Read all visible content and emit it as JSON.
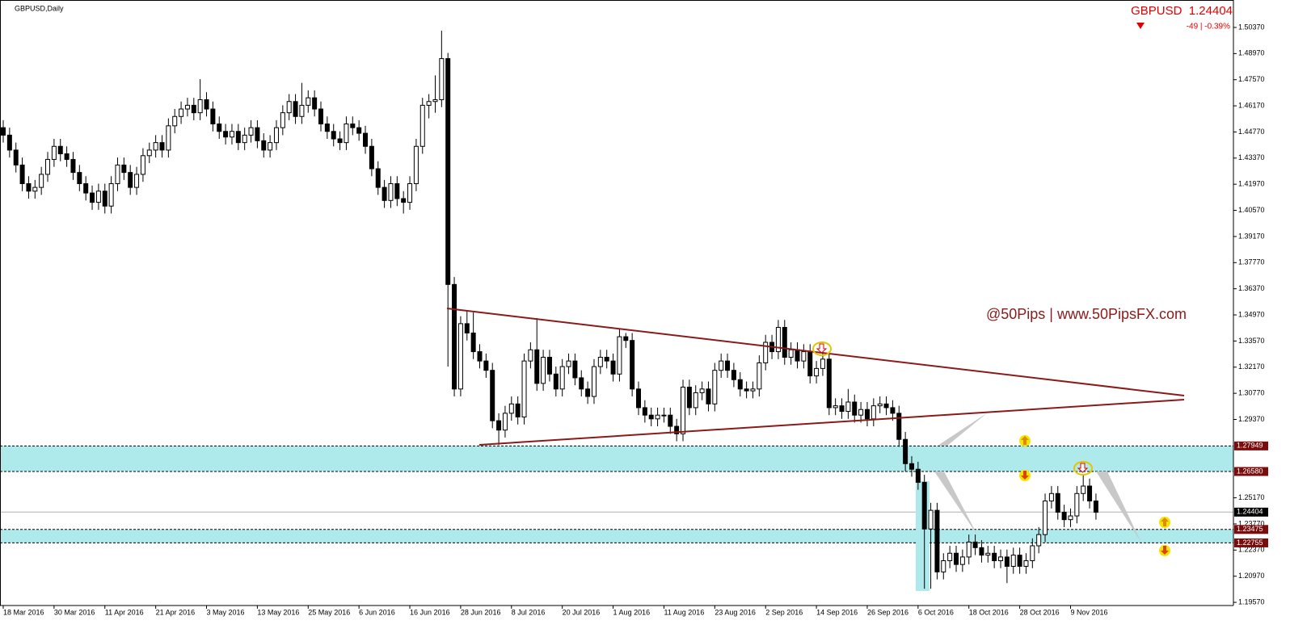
{
  "chart_data": {
    "type": "candlestick",
    "title": "GBPUSD,Daily",
    "quote": "GBPUSD  1.24404",
    "change": "-49 | -0.39%",
    "annotation": "@50Pips | www.50PipsFX.com",
    "ylim": [
      1.194,
      1.5184
    ],
    "yticks": [
      {
        "value": 1.5037,
        "label": "1.50370"
      },
      {
        "value": 1.4897,
        "label": "1.48970"
      },
      {
        "value": 1.4757,
        "label": "1.47570"
      },
      {
        "value": 1.4617,
        "label": "1.46170"
      },
      {
        "value": 1.4477,
        "label": "1.44770"
      },
      {
        "value": 1.4337,
        "label": "1.43370"
      },
      {
        "value": 1.4197,
        "label": "1.41970"
      },
      {
        "value": 1.4057,
        "label": "1.40570"
      },
      {
        "value": 1.3917,
        "label": "1.39170"
      },
      {
        "value": 1.3777,
        "label": "1.37770"
      },
      {
        "value": 1.3637,
        "label": "1.36370"
      },
      {
        "value": 1.3497,
        "label": "1.34970"
      },
      {
        "value": 1.3357,
        "label": "1.33570"
      },
      {
        "value": 1.3217,
        "label": "1.32170"
      },
      {
        "value": 1.3077,
        "label": "1.30770"
      },
      {
        "value": 1.2937,
        "label": "1.29370"
      },
      {
        "value": 1.2517,
        "label": "1.25170"
      },
      {
        "value": 1.2377,
        "label": "1.23770"
      },
      {
        "value": 1.2237,
        "label": "1.22370"
      },
      {
        "value": 1.2097,
        "label": "1.20970"
      },
      {
        "value": 1.1957,
        "label": "1.19570"
      }
    ],
    "levels": [
      1.27949,
      {
        "value": 1.2658,
        "label": "1.26580"
      },
      1.24404,
      1.23475,
      1.22755
    ],
    "categories": [
      "18 Mar 2016",
      null,
      null,
      null,
      null,
      null,
      null,
      null,
      "30 Mar 2016",
      null,
      null,
      null,
      null,
      null,
      null,
      null,
      "11 Apr 2016",
      null,
      null,
      null,
      null,
      null,
      null,
      null,
      "21 Apr 2016",
      null,
      null,
      null,
      null,
      null,
      null,
      null,
      "3 May 2016",
      null,
      null,
      null,
      null,
      null,
      null,
      null,
      "13 May 2016",
      null,
      null,
      null,
      null,
      null,
      null,
      null,
      "25 May 2016",
      null,
      null,
      null,
      null,
      null,
      null,
      null,
      "6 Jun 2016",
      null,
      null,
      null,
      null,
      null,
      null,
      null,
      "16 Jun 2016",
      null,
      null,
      null,
      null,
      null,
      null,
      null,
      "28 Jun 2016",
      null,
      null,
      null,
      null,
      null,
      null,
      null,
      "8 Jul 2016",
      null,
      null,
      null,
      null,
      null,
      null,
      null,
      "20 Jul 2016",
      null,
      null,
      null,
      null,
      null,
      null,
      null,
      "1 Aug 2016",
      null,
      null,
      null,
      null,
      null,
      null,
      null,
      "11 Aug 2016",
      null,
      null,
      null,
      null,
      null,
      null,
      null,
      "23 Aug 2016",
      null,
      null,
      null,
      null,
      null,
      null,
      null,
      "2 Sep 2016",
      null,
      null,
      null,
      null,
      null,
      null,
      null,
      "14 Sep 2016",
      null,
      null,
      null,
      null,
      null,
      null,
      null,
      "26 Sep 2016",
      null,
      null,
      null,
      null,
      null,
      null,
      null,
      "6 Oct 2016",
      null,
      null,
      null,
      null,
      null,
      null,
      null,
      "18 Oct 2016",
      null,
      null,
      null,
      null,
      null,
      null,
      null,
      "28 Oct 2016",
      null,
      null,
      null,
      null,
      null,
      null,
      null,
      "9 Nov 2016",
      null,
      null,
      null,
      null
    ],
    "candles": [
      [
        1.45,
        1.454,
        1.442,
        1.446
      ],
      [
        1.446,
        1.45,
        1.434,
        1.438
      ],
      [
        1.438,
        1.442,
        1.426,
        1.43
      ],
      [
        1.43,
        1.434,
        1.416,
        1.42
      ],
      [
        1.42,
        1.424,
        1.412,
        1.416
      ],
      [
        1.416,
        1.422,
        1.412,
        1.418
      ],
      [
        1.418,
        1.429,
        1.414,
        1.425
      ],
      [
        1.425,
        1.437,
        1.421,
        1.433
      ],
      [
        1.433,
        1.444,
        1.429,
        1.44
      ],
      [
        1.44,
        1.444,
        1.432,
        1.436
      ],
      [
        1.436,
        1.44,
        1.429,
        1.433
      ],
      [
        1.433,
        1.437,
        1.422,
        1.426
      ],
      [
        1.426,
        1.43,
        1.416,
        1.42
      ],
      [
        1.42,
        1.424,
        1.411,
        1.415
      ],
      [
        1.415,
        1.419,
        1.406,
        1.41
      ],
      [
        1.41,
        1.42,
        1.406,
        1.416
      ],
      [
        1.416,
        1.42,
        1.404,
        1.408
      ],
      [
        1.408,
        1.424,
        1.404,
        1.42
      ],
      [
        1.42,
        1.434,
        1.416,
        1.43
      ],
      [
        1.43,
        1.434,
        1.422,
        1.426
      ],
      [
        1.426,
        1.43,
        1.414,
        1.418
      ],
      [
        1.418,
        1.429,
        1.414,
        1.425
      ],
      [
        1.425,
        1.439,
        1.421,
        1.435
      ],
      [
        1.435,
        1.442,
        1.431,
        1.438
      ],
      [
        1.438,
        1.446,
        1.434,
        1.442
      ],
      [
        1.442,
        1.446,
        1.434,
        1.438
      ],
      [
        1.438,
        1.455,
        1.434,
        1.451
      ],
      [
        1.451,
        1.46,
        1.447,
        1.456
      ],
      [
        1.456,
        1.464,
        1.452,
        1.46
      ],
      [
        1.46,
        1.466,
        1.456,
        1.462
      ],
      [
        1.462,
        1.466,
        1.454,
        1.458
      ],
      [
        1.458,
        1.476,
        1.454,
        1.465
      ],
      [
        1.465,
        1.469,
        1.456,
        1.46
      ],
      [
        1.46,
        1.464,
        1.448,
        1.452
      ],
      [
        1.452,
        1.456,
        1.444,
        1.448
      ],
      [
        1.448,
        1.452,
        1.441,
        1.445
      ],
      [
        1.445,
        1.452,
        1.441,
        1.448
      ],
      [
        1.448,
        1.452,
        1.438,
        1.442
      ],
      [
        1.442,
        1.45,
        1.438,
        1.446
      ],
      [
        1.446,
        1.454,
        1.442,
        1.45
      ],
      [
        1.45,
        1.454,
        1.439,
        1.443
      ],
      [
        1.443,
        1.447,
        1.434,
        1.438
      ],
      [
        1.438,
        1.446,
        1.434,
        1.442
      ],
      [
        1.442,
        1.454,
        1.438,
        1.45
      ],
      [
        1.45,
        1.462,
        1.446,
        1.458
      ],
      [
        1.458,
        1.468,
        1.454,
        1.464
      ],
      [
        1.464,
        1.468,
        1.452,
        1.456
      ],
      [
        1.456,
        1.474,
        1.452,
        1.462
      ],
      [
        1.462,
        1.47,
        1.458,
        1.466
      ],
      [
        1.466,
        1.47,
        1.456,
        1.46
      ],
      [
        1.46,
        1.464,
        1.448,
        1.452
      ],
      [
        1.452,
        1.456,
        1.444,
        1.448
      ],
      [
        1.448,
        1.452,
        1.44,
        1.444
      ],
      [
        1.444,
        1.448,
        1.438,
        1.442
      ],
      [
        1.442,
        1.456,
        1.438,
        1.452
      ],
      [
        1.452,
        1.456,
        1.446,
        1.45
      ],
      [
        1.45,
        1.454,
        1.443,
        1.447
      ],
      [
        1.447,
        1.451,
        1.436,
        1.44
      ],
      [
        1.44,
        1.444,
        1.424,
        1.428
      ],
      [
        1.428,
        1.432,
        1.414,
        1.418
      ],
      [
        1.418,
        1.422,
        1.407,
        1.411
      ],
      [
        1.411,
        1.424,
        1.407,
        1.42
      ],
      [
        1.42,
        1.424,
        1.408,
        1.412
      ],
      [
        1.412,
        1.416,
        1.404,
        1.41
      ],
      [
        1.41,
        1.424,
        1.406,
        1.42
      ],
      [
        1.42,
        1.444,
        1.416,
        1.44
      ],
      [
        1.44,
        1.466,
        1.436,
        1.462
      ],
      [
        1.462,
        1.468,
        1.455,
        1.464
      ],
      [
        1.464,
        1.478,
        1.458,
        1.465
      ],
      [
        1.465,
        1.502,
        1.461,
        1.487
      ],
      [
        1.487,
        1.49,
        1.322,
        1.366
      ],
      [
        1.366,
        1.37,
        1.306,
        1.31
      ],
      [
        1.31,
        1.349,
        1.306,
        1.345
      ],
      [
        1.345,
        1.352,
        1.336,
        1.34
      ],
      [
        1.34,
        1.351,
        1.326,
        1.33
      ],
      [
        1.33,
        1.334,
        1.321,
        1.325
      ],
      [
        1.325,
        1.329,
        1.316,
        1.32
      ],
      [
        1.32,
        1.324,
        1.289,
        1.293
      ],
      [
        1.293,
        1.297,
        1.28,
        1.288
      ],
      [
        1.288,
        1.301,
        1.284,
        1.297
      ],
      [
        1.297,
        1.306,
        1.293,
        1.302
      ],
      [
        1.302,
        1.306,
        1.291,
        1.295
      ],
      [
        1.295,
        1.329,
        1.291,
        1.325
      ],
      [
        1.325,
        1.335,
        1.321,
        1.331
      ],
      [
        1.331,
        1.348,
        1.309,
        1.313
      ],
      [
        1.313,
        1.331,
        1.309,
        1.327
      ],
      [
        1.327,
        1.331,
        1.314,
        1.318
      ],
      [
        1.318,
        1.322,
        1.306,
        1.31
      ],
      [
        1.31,
        1.326,
        1.306,
        1.322
      ],
      [
        1.322,
        1.329,
        1.318,
        1.325
      ],
      [
        1.325,
        1.329,
        1.312,
        1.316
      ],
      [
        1.316,
        1.32,
        1.306,
        1.31
      ],
      [
        1.31,
        1.314,
        1.302,
        1.306
      ],
      [
        1.306,
        1.326,
        1.302,
        1.322
      ],
      [
        1.322,
        1.331,
        1.318,
        1.327
      ],
      [
        1.327,
        1.331,
        1.321,
        1.325
      ],
      [
        1.325,
        1.329,
        1.314,
        1.318
      ],
      [
        1.318,
        1.342,
        1.314,
        1.338
      ],
      [
        1.338,
        1.34,
        1.332,
        1.336
      ],
      [
        1.336,
        1.34,
        1.306,
        1.31
      ],
      [
        1.31,
        1.314,
        1.296,
        1.3
      ],
      [
        1.3,
        1.304,
        1.292,
        1.296
      ],
      [
        1.296,
        1.3,
        1.29,
        1.294
      ],
      [
        1.294,
        1.3,
        1.29,
        1.296
      ],
      [
        1.296,
        1.3,
        1.292,
        1.296
      ],
      [
        1.296,
        1.3,
        1.286,
        1.29
      ],
      [
        1.29,
        1.294,
        1.282,
        1.286
      ],
      [
        1.286,
        1.315,
        1.282,
        1.311
      ],
      [
        1.311,
        1.315,
        1.296,
        1.3
      ],
      [
        1.3,
        1.312,
        1.296,
        1.308
      ],
      [
        1.308,
        1.314,
        1.304,
        1.31
      ],
      [
        1.31,
        1.314,
        1.298,
        1.302
      ],
      [
        1.302,
        1.324,
        1.298,
        1.32
      ],
      [
        1.32,
        1.329,
        1.316,
        1.325
      ],
      [
        1.325,
        1.329,
        1.316,
        1.32
      ],
      [
        1.32,
        1.324,
        1.311,
        1.315
      ],
      [
        1.315,
        1.319,
        1.306,
        1.31
      ],
      [
        1.31,
        1.314,
        1.305,
        1.309
      ],
      [
        1.309,
        1.314,
        1.305,
        1.31
      ],
      [
        1.31,
        1.328,
        1.306,
        1.324
      ],
      [
        1.324,
        1.339,
        1.32,
        1.335
      ],
      [
        1.335,
        1.339,
        1.326,
        1.33
      ],
      [
        1.33,
        1.347,
        1.326,
        1.343
      ],
      [
        1.343,
        1.347,
        1.323,
        1.327
      ],
      [
        1.327,
        1.335,
        1.323,
        1.331
      ],
      [
        1.331,
        1.335,
        1.321,
        1.325
      ],
      [
        1.325,
        1.334,
        1.321,
        1.33
      ],
      [
        1.33,
        1.334,
        1.313,
        1.317
      ],
      [
        1.317,
        1.325,
        1.313,
        1.321
      ],
      [
        1.321,
        1.33,
        1.317,
        1.326
      ],
      [
        1.326,
        1.33,
        1.296,
        1.3
      ],
      [
        1.3,
        1.305,
        1.296,
        1.301
      ],
      [
        1.301,
        1.305,
        1.294,
        1.298
      ],
      [
        1.298,
        1.31,
        1.294,
        1.303
      ],
      [
        1.303,
        1.307,
        1.292,
        1.296
      ],
      [
        1.296,
        1.303,
        1.292,
        1.299
      ],
      [
        1.299,
        1.303,
        1.29,
        1.294
      ],
      [
        1.294,
        1.305,
        1.29,
        1.301
      ],
      [
        1.301,
        1.306,
        1.297,
        1.302
      ],
      [
        1.302,
        1.306,
        1.296,
        1.3
      ],
      [
        1.3,
        1.304,
        1.293,
        1.297
      ],
      [
        1.297,
        1.301,
        1.279,
        1.283
      ],
      [
        1.283,
        1.287,
        1.266,
        1.27
      ],
      [
        1.27,
        1.274,
        1.263,
        1.267
      ],
      [
        1.267,
        1.271,
        1.256,
        1.26
      ],
      [
        1.26,
        1.264,
        1.203,
        1.235
      ],
      [
        1.235,
        1.249,
        1.203,
        1.245
      ],
      [
        1.245,
        1.249,
        1.208,
        1.212
      ],
      [
        1.212,
        1.222,
        1.208,
        1.218
      ],
      [
        1.218,
        1.226,
        1.214,
        1.222
      ],
      [
        1.222,
        1.226,
        1.212,
        1.216
      ],
      [
        1.216,
        1.224,
        1.212,
        1.22
      ],
      [
        1.22,
        1.232,
        1.216,
        1.228
      ],
      [
        1.228,
        1.232,
        1.221,
        1.225
      ],
      [
        1.225,
        1.229,
        1.217,
        1.221
      ],
      [
        1.221,
        1.226,
        1.217,
        1.222
      ],
      [
        1.222,
        1.226,
        1.214,
        1.218
      ],
      [
        1.218,
        1.224,
        1.214,
        1.22
      ],
      [
        1.22,
        1.224,
        1.206,
        1.215
      ],
      [
        1.215,
        1.225,
        1.211,
        1.221
      ],
      [
        1.221,
        1.225,
        1.211,
        1.215
      ],
      [
        1.215,
        1.222,
        1.211,
        1.218
      ],
      [
        1.218,
        1.23,
        1.214,
        1.226
      ],
      [
        1.226,
        1.236,
        1.222,
        1.232
      ],
      [
        1.232,
        1.254,
        1.228,
        1.25
      ],
      [
        1.25,
        1.258,
        1.246,
        1.254
      ],
      [
        1.254,
        1.258,
        1.24,
        1.244
      ],
      [
        1.244,
        1.248,
        1.236,
        1.24
      ],
      [
        1.24,
        1.246,
        1.236,
        1.242
      ],
      [
        1.242,
        1.258,
        1.238,
        1.254
      ],
      [
        1.254,
        1.264,
        1.25,
        1.258
      ],
      [
        1.258,
        1.262,
        1.246,
        1.25
      ],
      [
        1.25,
        1.254,
        1.24,
        1.244
      ]
    ]
  }
}
